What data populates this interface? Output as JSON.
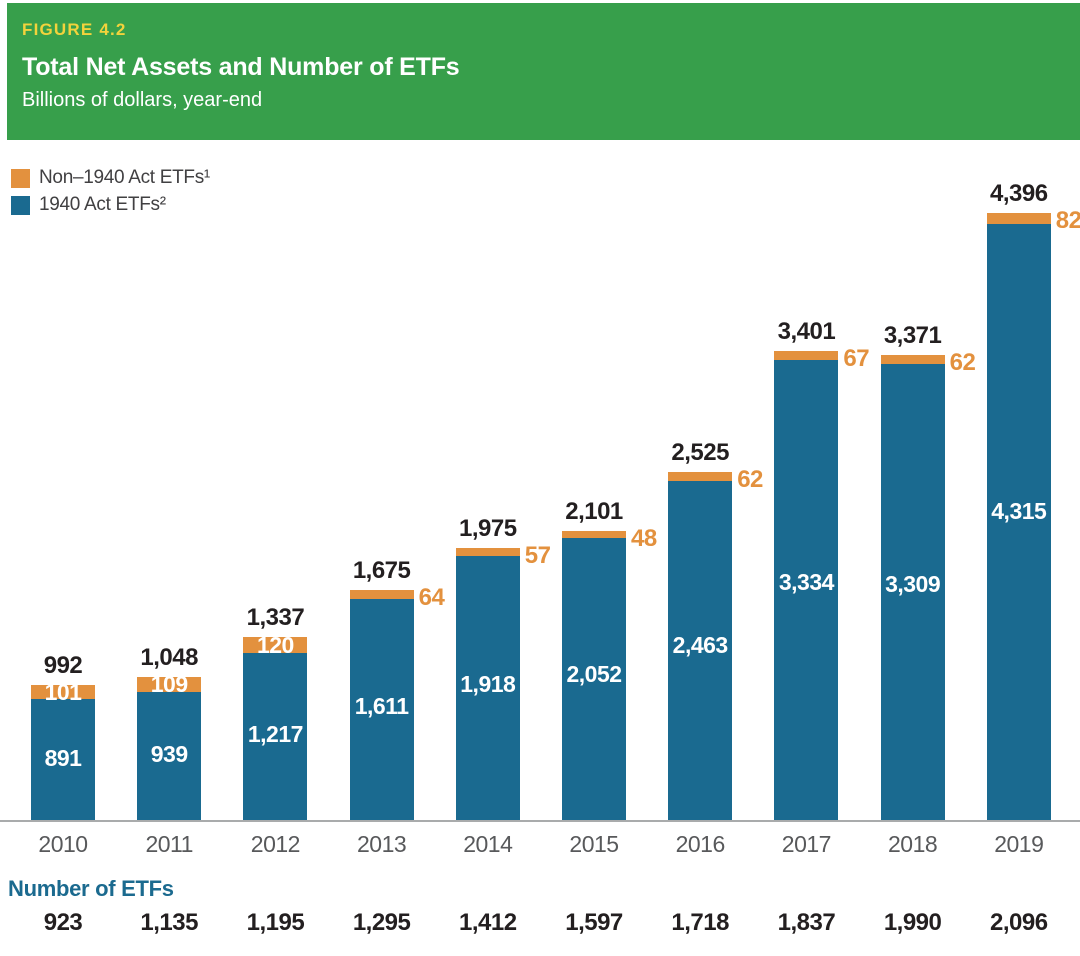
{
  "header": {
    "figure_label": "FIGURE 4.2",
    "title": "Total Net Assets and Number of ETFs",
    "subtitle": "Billions of dollars, year-end"
  },
  "legend": [
    {
      "label": "Non–1940 Act ETFs¹",
      "color": "#E3913E"
    },
    {
      "label": "1940 Act ETFs²",
      "color": "#1A6A90"
    }
  ],
  "chart_data": {
    "type": "bar",
    "stacked": true,
    "title": "Total Net Assets and Number of ETFs",
    "subtitle": "Billions of dollars, year-end",
    "xlabel": "",
    "ylabel": "Billions of dollars",
    "ylim": [
      0,
      4600
    ],
    "grid": false,
    "legend_position": "top-left",
    "categories": [
      "2010",
      "2011",
      "2012",
      "2013",
      "2014",
      "2015",
      "2016",
      "2017",
      "2018",
      "2019"
    ],
    "series": [
      {
        "name": "1940 Act ETFs²",
        "color": "#1A6A90",
        "values": [
          891,
          939,
          1217,
          1611,
          1918,
          2052,
          2463,
          3334,
          3309,
          4315
        ],
        "display": [
          "891",
          "939",
          "1,217",
          "1,611",
          "1,918",
          "2,052",
          "2,463",
          "3,334",
          "3,309",
          "4,315"
        ]
      },
      {
        "name": "Non–1940 Act ETFs¹",
        "color": "#E3913E",
        "values": [
          101,
          109,
          120,
          64,
          57,
          48,
          62,
          67,
          62,
          82
        ],
        "display": [
          "101",
          "109",
          "120",
          "64",
          "57",
          "48",
          "62",
          "67",
          "62",
          "82"
        ]
      }
    ],
    "totals": [
      992,
      1048,
      1337,
      1675,
      1975,
      2101,
      2525,
      3401,
      3371,
      4396
    ],
    "totals_display": [
      "992",
      "1,048",
      "1,337",
      "1,675",
      "1,975",
      "2,101",
      "2,525",
      "3,401",
      "3,371",
      "4,396"
    ],
    "orange_label_position": [
      "inside",
      "inside",
      "inside",
      "right",
      "right",
      "right",
      "right",
      "right",
      "right",
      "right"
    ],
    "counts_label": "Number of ETFs",
    "counts_display": [
      "923",
      "1,135",
      "1,195",
      "1,295",
      "1,412",
      "1,597",
      "1,718",
      "1,837",
      "1,990",
      "2,096"
    ]
  }
}
